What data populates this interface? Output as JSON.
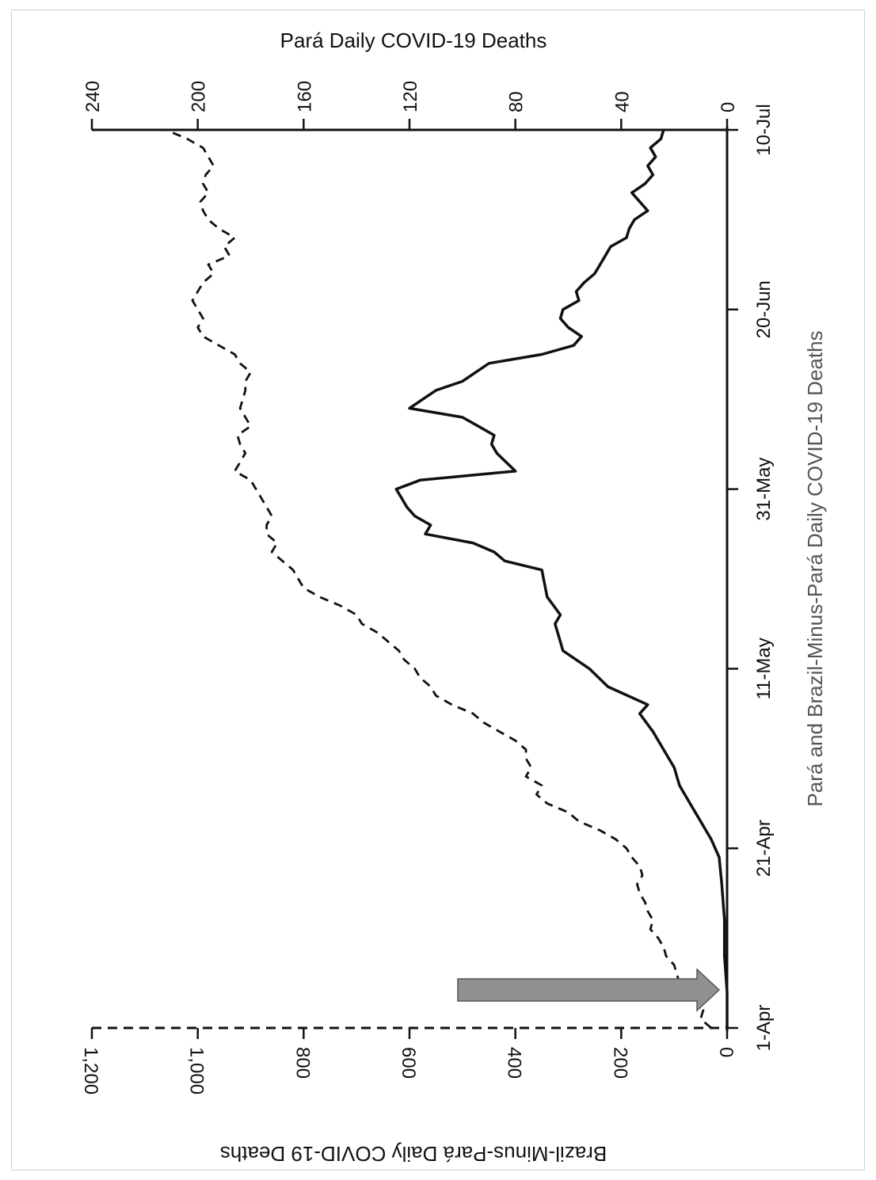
{
  "chart_data": {
    "type": "line",
    "orientation": "rotated-90-clockwise",
    "x_label": "Pará and Brazil-Minus-Pará Daily COVID-19 Deaths",
    "x_ticks": [
      "1-Apr",
      "21-Apr",
      "11-May",
      "31-May",
      "20-Jun",
      "10-Jul"
    ],
    "x_tick_day_offsets": [
      0,
      20,
      40,
      60,
      80,
      100
    ],
    "y_left_label": "Pará Daily COVID-19 Deaths",
    "y_left_ticks": [
      "0",
      "40",
      "80",
      "120",
      "160",
      "200",
      "240"
    ],
    "y_left_range": [
      0,
      240
    ],
    "y_right_label": "Brazil-Minus-Pará Daily COVID-19 Deaths",
    "y_right_ticks": [
      "0",
      "200",
      "400",
      "600",
      "800",
      "1,000",
      "1,200"
    ],
    "y_right_range": [
      0,
      1200
    ],
    "series": [
      {
        "name": "Pará",
        "axis": "left",
        "style": "solid",
        "points": [
          [
            0,
            0
          ],
          [
            4,
            0
          ],
          [
            8,
            1
          ],
          [
            12,
            1
          ],
          [
            16,
            2
          ],
          [
            19,
            3
          ],
          [
            21,
            6
          ],
          [
            23,
            10
          ],
          [
            25,
            14
          ],
          [
            27,
            18
          ],
          [
            29,
            20
          ],
          [
            31,
            24
          ],
          [
            33,
            28
          ],
          [
            35,
            33
          ],
          [
            36,
            30
          ],
          [
            38,
            45
          ],
          [
            40,
            52
          ],
          [
            42,
            62
          ],
          [
            43,
            63
          ],
          [
            45,
            65
          ],
          [
            46,
            63
          ],
          [
            48,
            68
          ],
          [
            51,
            70
          ],
          [
            52,
            84
          ],
          [
            53,
            88
          ],
          [
            54,
            96
          ],
          [
            55,
            114
          ],
          [
            56,
            112
          ],
          [
            57,
            118
          ],
          [
            58,
            121
          ],
          [
            59,
            123
          ],
          [
            60,
            125
          ],
          [
            61,
            116
          ],
          [
            62,
            80
          ],
          [
            64,
            87
          ],
          [
            65,
            89
          ],
          [
            66,
            88
          ],
          [
            67,
            94
          ],
          [
            68,
            100
          ],
          [
            69,
            120
          ],
          [
            70,
            115
          ],
          [
            71,
            110
          ],
          [
            72,
            100
          ],
          [
            73,
            95
          ],
          [
            74,
            90
          ],
          [
            75,
            70
          ],
          [
            76,
            58
          ],
          [
            77,
            55
          ],
          [
            78,
            60
          ],
          [
            79,
            63
          ],
          [
            80,
            62
          ],
          [
            81,
            56
          ],
          [
            82,
            57
          ],
          [
            83,
            54
          ],
          [
            84,
            50
          ],
          [
            85,
            48
          ],
          [
            86,
            46
          ],
          [
            87,
            44
          ],
          [
            88,
            38
          ],
          [
            89,
            37
          ],
          [
            90,
            35
          ],
          [
            91,
            30
          ],
          [
            92,
            33
          ],
          [
            93,
            36
          ],
          [
            94,
            31
          ],
          [
            95,
            28
          ],
          [
            96,
            30
          ],
          [
            97,
            27
          ],
          [
            98,
            29
          ],
          [
            99,
            25
          ],
          [
            100,
            24
          ]
        ]
      },
      {
        "name": "Brazil-Minus-Pará",
        "axis": "right",
        "style": "dashed",
        "points": [
          [
            0,
            30
          ],
          [
            1,
            50
          ],
          [
            2,
            45
          ],
          [
            3,
            55
          ],
          [
            4,
            85
          ],
          [
            5,
            90
          ],
          [
            6,
            95
          ],
          [
            7,
            100
          ],
          [
            8,
            115
          ],
          [
            9,
            120
          ],
          [
            10,
            130
          ],
          [
            11,
            145
          ],
          [
            12,
            140
          ],
          [
            13,
            150
          ],
          [
            14,
            155
          ],
          [
            15,
            165
          ],
          [
            16,
            170
          ],
          [
            17,
            160
          ],
          [
            18,
            165
          ],
          [
            19,
            180
          ],
          [
            20,
            190
          ],
          [
            21,
            210
          ],
          [
            22,
            240
          ],
          [
            23,
            280
          ],
          [
            24,
            300
          ],
          [
            25,
            340
          ],
          [
            26,
            360
          ],
          [
            27,
            350
          ],
          [
            28,
            380
          ],
          [
            29,
            370
          ],
          [
            30,
            380
          ],
          [
            31,
            380
          ],
          [
            32,
            400
          ],
          [
            33,
            430
          ],
          [
            34,
            460
          ],
          [
            35,
            480
          ],
          [
            36,
            520
          ],
          [
            37,
            550
          ],
          [
            38,
            560
          ],
          [
            39,
            580
          ],
          [
            40,
            590
          ],
          [
            41,
            610
          ],
          [
            42,
            620
          ],
          [
            43,
            640
          ],
          [
            44,
            660
          ],
          [
            45,
            690
          ],
          [
            46,
            700
          ],
          [
            47,
            730
          ],
          [
            48,
            770
          ],
          [
            49,
            800
          ],
          [
            50,
            810
          ],
          [
            51,
            820
          ],
          [
            52,
            840
          ],
          [
            53,
            860
          ],
          [
            54,
            850
          ],
          [
            55,
            870
          ],
          [
            56,
            870
          ],
          [
            57,
            860
          ],
          [
            58,
            870
          ],
          [
            59,
            880
          ],
          [
            60,
            890
          ],
          [
            61,
            900
          ],
          [
            62,
            930
          ],
          [
            63,
            920
          ],
          [
            64,
            910
          ],
          [
            65,
            920
          ],
          [
            66,
            925
          ],
          [
            67,
            900
          ],
          [
            68,
            910
          ],
          [
            69,
            920
          ],
          [
            70,
            915
          ],
          [
            71,
            910
          ],
          [
            72,
            910
          ],
          [
            73,
            900
          ],
          [
            74,
            920
          ],
          [
            75,
            930
          ],
          [
            76,
            960
          ],
          [
            77,
            990
          ],
          [
            78,
            1000
          ],
          [
            79,
            990
          ],
          [
            80,
            1000
          ],
          [
            81,
            1010
          ],
          [
            82,
            1000
          ],
          [
            83,
            990
          ],
          [
            84,
            970
          ],
          [
            85,
            980
          ],
          [
            86,
            940
          ],
          [
            87,
            950
          ],
          [
            88,
            930
          ],
          [
            89,
            960
          ],
          [
            90,
            980
          ],
          [
            91,
            990
          ],
          [
            92,
            995
          ],
          [
            93,
            980
          ],
          [
            94,
            990
          ],
          [
            95,
            985
          ],
          [
            96,
            970
          ],
          [
            97,
            980
          ],
          [
            98,
            990
          ],
          [
            99,
            1020
          ],
          [
            100,
            1060
          ]
        ]
      }
    ],
    "annotation": "gray arrow pointing to 8-Apr on the date axis"
  }
}
